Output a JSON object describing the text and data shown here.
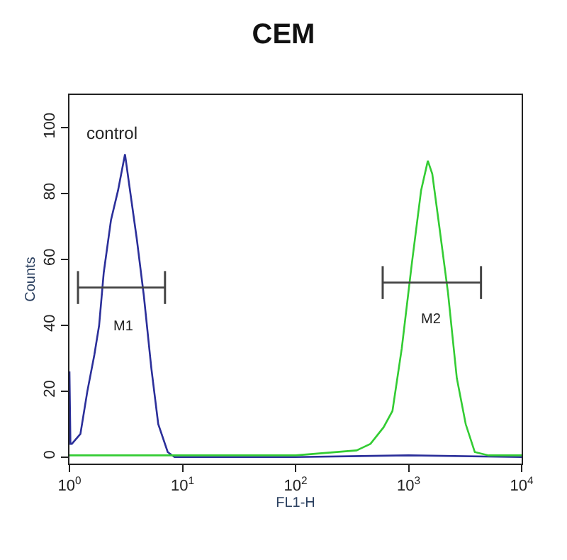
{
  "chart_data": {
    "type": "line",
    "title": "CEM",
    "xlabel": "FL1-H",
    "ylabel": "Counts",
    "log": "x",
    "xlim": [
      1,
      10000
    ],
    "ylim": [
      -2,
      110
    ],
    "xticks": [
      {
        "value": 1,
        "label": "10$^{0}$"
      },
      {
        "value": 10,
        "label": "10$^{1}$"
      },
      {
        "value": 100,
        "label": "10$^{2}$"
      },
      {
        "value": 1000,
        "label": "10$^{3}$"
      },
      {
        "value": 10000,
        "label": "10$^{4}$"
      }
    ],
    "yticks": [
      0,
      20,
      40,
      60,
      80,
      100
    ],
    "marker": "none",
    "annotations": [
      "control",
      "M1",
      "M2"
    ],
    "series": [
      {
        "color": "#2b2f9a",
        "x": [
          1,
          1.02,
          1.05,
          1.25,
          1.44,
          1.66,
          1.83,
          2.01,
          2.33,
          2.69,
          3.1,
          3.4,
          3.95,
          4.55,
          5.3,
          6.1,
          7.4,
          8.5,
          20,
          100,
          1000,
          10000
        ],
        "values": [
          26,
          4,
          4,
          7,
          20,
          31,
          40,
          56,
          72,
          81,
          92,
          82,
          66,
          49,
          27,
          10,
          1.5,
          0,
          0,
          0,
          0.5,
          0
        ]
      },
      {
        "color": "#33cc33",
        "x": [
          1,
          10,
          100,
          347,
          460,
          600,
          720,
          870,
          1070,
          1290,
          1480,
          1620,
          1870,
          2230,
          2670,
          3200,
          3850,
          5100,
          10000
        ],
        "values": [
          0.5,
          0.5,
          0.5,
          2,
          4,
          9,
          14,
          33,
          59,
          81,
          90,
          86,
          70,
          50,
          24,
          10,
          1.5,
          0.5,
          0.5
        ]
      },
      {
        "color": "#444444",
        "x": [
          1.19,
          7.0
        ],
        "values": [
          51.5,
          51.5
        ],
        "errors": [
          5,
          5
        ]
      },
      {
        "color": "#444444",
        "x": [
          590,
          4370
        ],
        "values": [
          53,
          53
        ],
        "errors": [
          5,
          5
        ]
      }
    ]
  }
}
